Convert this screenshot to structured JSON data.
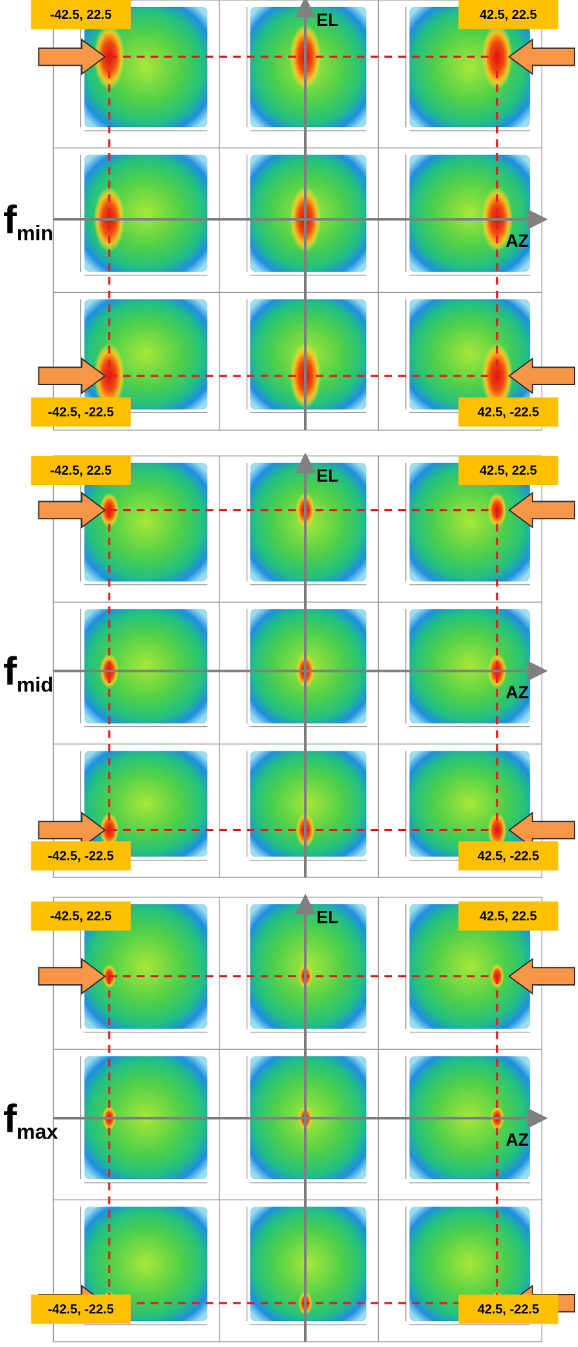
{
  "figure": {
    "blocks": [
      {
        "symbol": "f",
        "subscript": "min",
        "el_label": "EL",
        "az_label": "AZ",
        "corner_labels": {
          "top_left": "-42.5, 22.5",
          "top_right": "42.5, 22.5",
          "bottom_left": "-42.5, -22.5",
          "bottom_right": "42.5, -22.5"
        }
      },
      {
        "symbol": "f",
        "subscript": "mid",
        "el_label": "EL",
        "az_label": "AZ",
        "corner_labels": {
          "top_left": "-42.5, 22.5",
          "top_right": "42.5, 22.5",
          "bottom_left": "-42.5, -22.5",
          "bottom_right": "42.5, -22.5"
        }
      },
      {
        "symbol": "f",
        "subscript": "max",
        "el_label": "EL",
        "az_label": "AZ",
        "corner_labels": {
          "top_left": "-42.5, 22.5",
          "top_right": "42.5, 22.5",
          "bottom_left": "-42.5, -22.5",
          "bottom_right": "42.5, -22.5"
        }
      }
    ]
  }
}
